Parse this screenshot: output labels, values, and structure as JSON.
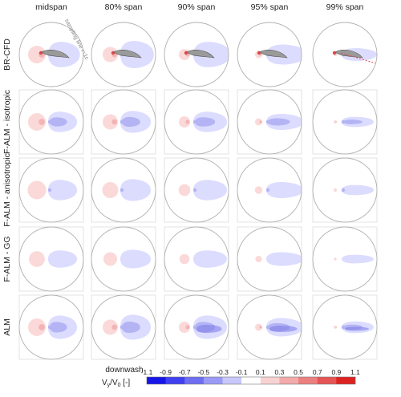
{
  "chart_data": {
    "type": "heatmap",
    "columns": [
      "midspan",
      "80% span",
      "90% span",
      "95% span",
      "99% span"
    ],
    "rows": [
      "BR-CFD",
      "F-ALM - isotropic",
      "F-ALM - anisotropic",
      "F-ALM - GG",
      "ALM"
    ],
    "annotation": "sampling line r=1c",
    "colorbar": {
      "label_line1": "downwash",
      "label_line2": "V",
      "label_sub": "y",
      "label_rest": "/V",
      "label_sub2": "0",
      "label_unit": " [-]",
      "ticks": [
        "-1.1",
        "-0.9",
        "-0.7",
        "-0.5",
        "-0.3",
        "-0.1",
        "0.1",
        "0.3",
        "0.5",
        "0.7",
        "0.9",
        "1.1"
      ],
      "range": [
        -1.1,
        1.1
      ]
    },
    "colors": {
      "negative_light": "#dcdcff",
      "negative_mid": "#b4b4f4",
      "negative_dark": "#7a7ae8",
      "positive_light": "#fbd9d9",
      "positive_mid": "#f2b4b4",
      "positive_dark": "#e04848",
      "airfoil": "#9a9a9a",
      "circle": "#b0b0b0"
    }
  }
}
